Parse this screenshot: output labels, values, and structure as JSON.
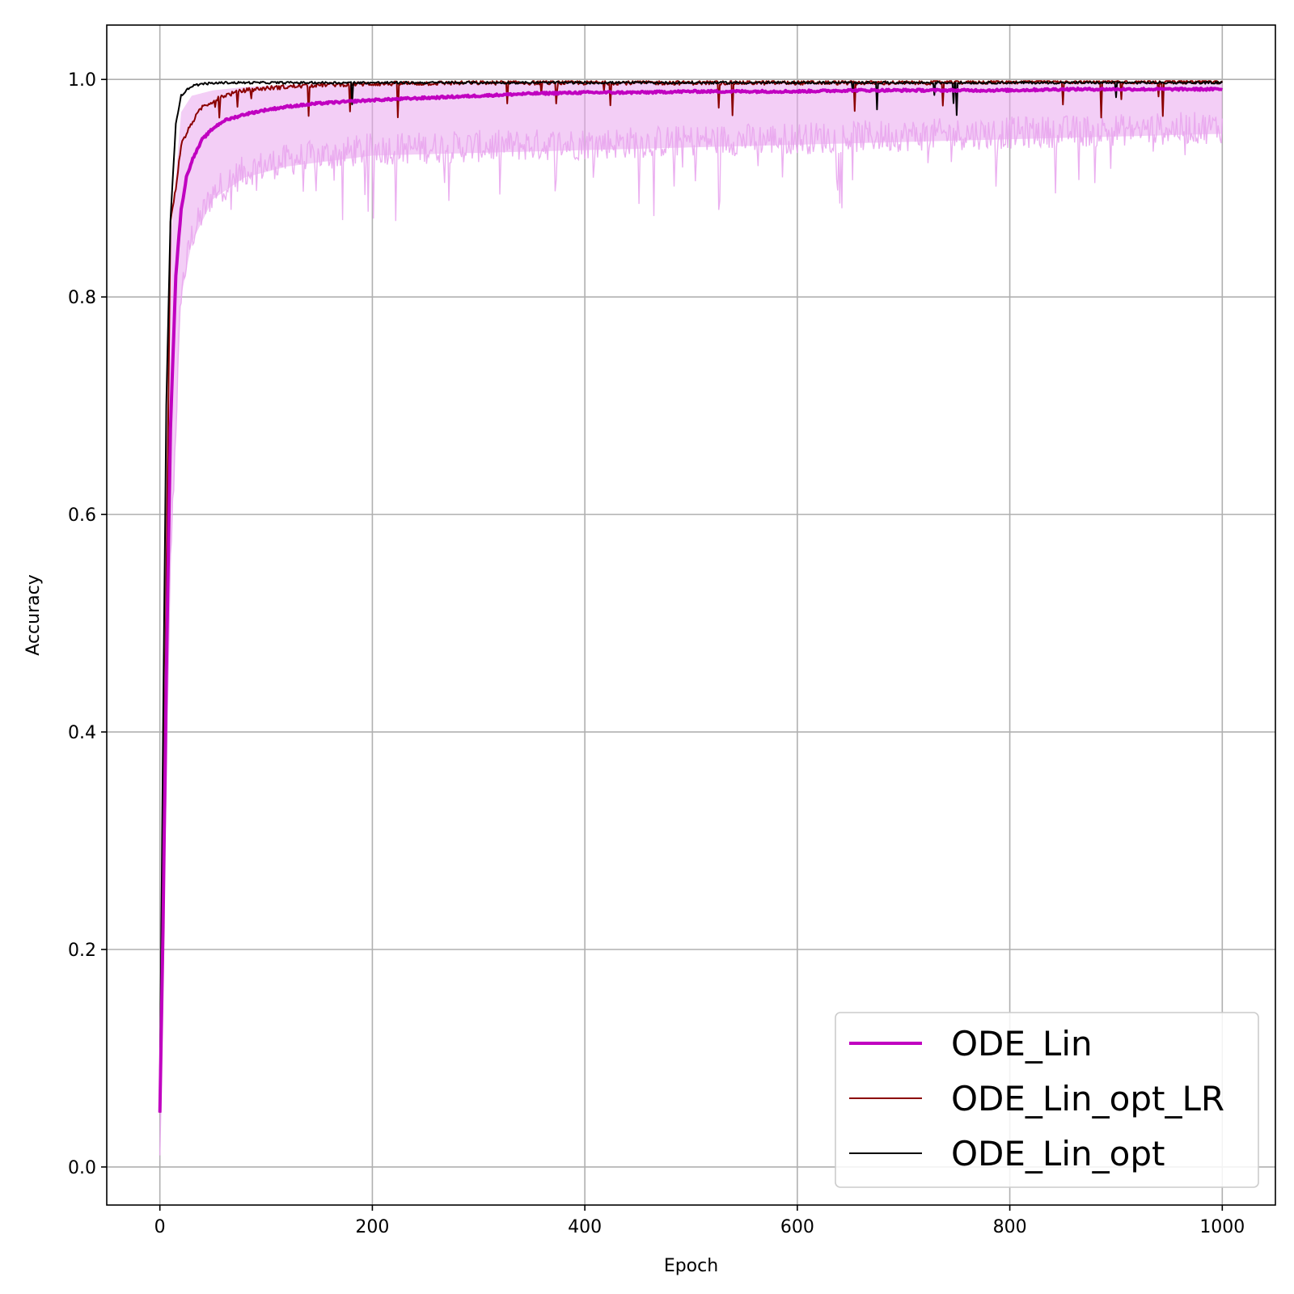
{
  "chart_data": {
    "type": "line",
    "title": "",
    "xlabel": "Epoch",
    "ylabel": "Accuracy",
    "xlim": [
      -50,
      1050
    ],
    "ylim": [
      -0.035,
      1.05
    ],
    "xticks": [
      0,
      200,
      400,
      600,
      800,
      1000
    ],
    "yticks": [
      0.0,
      0.2,
      0.4,
      0.6,
      0.8,
      1.0
    ],
    "xtick_labels": [
      "0",
      "200",
      "400",
      "600",
      "800",
      "1000"
    ],
    "ytick_labels": [
      "0.0",
      "0.2",
      "0.4",
      "0.6",
      "0.8",
      "1.0"
    ],
    "grid": true,
    "legend_position": "lower-right",
    "colors": {
      "ode_lin": "#c000c0",
      "band": "#e9a6ee",
      "opt_lr": "#8b0000",
      "opt": "#000000"
    },
    "series": [
      {
        "name": "ODE_Lin",
        "x": [
          0,
          3,
          6,
          10,
          15,
          20,
          25,
          30,
          40,
          50,
          60,
          80,
          100,
          120,
          150,
          200,
          250,
          300,
          350,
          400,
          450,
          500,
          550,
          600,
          650,
          700,
          750,
          800,
          850,
          900,
          950,
          1000
        ],
        "y": [
          0.05,
          0.22,
          0.45,
          0.68,
          0.82,
          0.88,
          0.91,
          0.925,
          0.945,
          0.955,
          0.962,
          0.968,
          0.972,
          0.975,
          0.978,
          0.981,
          0.983,
          0.985,
          0.987,
          0.988,
          0.988,
          0.989,
          0.989,
          0.989,
          0.99,
          0.99,
          0.99,
          0.99,
          0.991,
          0.991,
          0.991,
          0.991
        ]
      },
      {
        "name": "ODE_Lin band",
        "x": [
          0,
          5,
          10,
          20,
          30,
          50,
          80,
          120,
          200,
          400,
          600,
          800,
          1000
        ],
        "y_low": [
          0.0,
          0.3,
          0.55,
          0.8,
          0.85,
          0.89,
          0.91,
          0.92,
          0.93,
          0.935,
          0.94,
          0.945,
          0.95
        ],
        "y_high": [
          0.07,
          0.55,
          0.85,
          0.97,
          0.985,
          0.99,
          0.993,
          0.995,
          0.996,
          0.997,
          0.997,
          0.997,
          0.997
        ]
      },
      {
        "name": "ODE_Lin_opt_LR",
        "x": [
          0,
          5,
          10,
          15,
          20,
          30,
          40,
          60,
          80,
          100,
          150,
          200,
          300,
          400,
          500,
          600,
          700,
          710,
          800,
          1000
        ],
        "y": [
          0.05,
          0.45,
          0.87,
          0.9,
          0.94,
          0.96,
          0.975,
          0.985,
          0.99,
          0.992,
          0.995,
          0.996,
          0.997,
          0.997,
          0.997,
          0.997,
          0.997,
          0.997,
          0.998,
          0.998
        ]
      },
      {
        "name": "ODE_Lin_opt",
        "x": [
          0,
          3,
          6,
          10,
          15,
          20,
          25,
          30,
          40,
          60,
          100,
          200,
          400,
          600,
          800,
          1000
        ],
        "y": [
          0.07,
          0.4,
          0.7,
          0.87,
          0.96,
          0.985,
          0.99,
          0.994,
          0.996,
          0.997,
          0.997,
          0.997,
          0.997,
          0.997,
          0.997,
          0.997
        ]
      }
    ]
  }
}
